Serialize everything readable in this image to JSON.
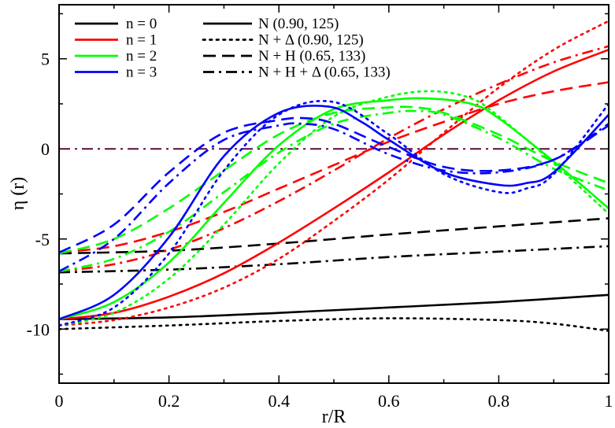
{
  "chart_data": {
    "type": "line",
    "xlabel": "r/R",
    "ylabel": "η (r)",
    "xlim": [
      0,
      1
    ],
    "ylim": [
      -13,
      8
    ],
    "xticks": [
      0,
      0.2,
      0.4,
      0.6,
      0.8,
      1
    ],
    "xtick_labels": [
      "0",
      "0.2",
      "0.4",
      "0.6",
      "0.8",
      "1"
    ],
    "yticks": [
      -10,
      -5,
      0,
      5
    ],
    "ytick_labels": [
      "-10",
      "-5",
      "0",
      "5"
    ],
    "reference_line": {
      "y": 0,
      "color": "#5a0a3c",
      "style": "dashdot"
    },
    "legend_colors": [
      {
        "label": "n = 0",
        "color": "#000000"
      },
      {
        "label": "n = 1",
        "color": "#ff0000"
      },
      {
        "label": "n = 2",
        "color": "#00ff00"
      },
      {
        "label": "n = 3",
        "color": "#0000ff"
      }
    ],
    "legend_styles": [
      {
        "label": "N (0.90, 125)",
        "style": "solid"
      },
      {
        "label": "N + Δ (0.90, 125)",
        "style": "dotted"
      },
      {
        "label": "N + H (0.65, 133)",
        "style": "dashed"
      },
      {
        "label": "N + H + Δ (0.65, 133)",
        "style": "dashdot"
      }
    ],
    "series": [
      {
        "name": "n = 0, N (0.90, 125)",
        "color": "#000000",
        "style": "solid",
        "x": [
          0,
          0.2,
          0.4,
          0.6,
          0.8,
          1
        ],
        "y": [
          -9.45,
          -9.35,
          -9.1,
          -8.8,
          -8.5,
          -8.1
        ]
      },
      {
        "name": "n = 0, N + Δ (0.90, 125)",
        "color": "#000000",
        "style": "dotted",
        "x": [
          0,
          0.2,
          0.4,
          0.6,
          0.8,
          0.9,
          1
        ],
        "y": [
          -10.0,
          -9.8,
          -9.55,
          -9.4,
          -9.5,
          -9.7,
          -10.1
        ]
      },
      {
        "name": "n = 0, N + H (0.65, 133)",
        "color": "#000000",
        "style": "dashed",
        "x": [
          0,
          0.2,
          0.4,
          0.6,
          0.8,
          1
        ],
        "y": [
          -5.8,
          -5.65,
          -5.25,
          -4.75,
          -4.3,
          -3.85
        ]
      },
      {
        "name": "n = 0, N + H + Δ (0.65, 133)",
        "color": "#000000",
        "style": "dashdot",
        "x": [
          0,
          0.2,
          0.4,
          0.6,
          0.8,
          1
        ],
        "y": [
          -6.85,
          -6.7,
          -6.4,
          -6.0,
          -5.7,
          -5.4
        ]
      },
      {
        "name": "n = 1, N (0.90, 125)",
        "color": "#ff0000",
        "style": "solid",
        "x": [
          0,
          0.1,
          0.2,
          0.3,
          0.4,
          0.5,
          0.6,
          0.7,
          0.8,
          0.9,
          1
        ],
        "y": [
          -9.45,
          -9.1,
          -8.2,
          -6.9,
          -5.2,
          -3.3,
          -1.3,
          0.8,
          2.7,
          4.3,
          5.5
        ]
      },
      {
        "name": "n = 1, N + Δ (0.90, 125)",
        "color": "#ff0000",
        "style": "dotted",
        "x": [
          0,
          0.1,
          0.2,
          0.3,
          0.4,
          0.5,
          0.6,
          0.7,
          0.8,
          0.9,
          1
        ],
        "y": [
          -9.8,
          -9.5,
          -8.8,
          -7.7,
          -6.1,
          -4.0,
          -1.7,
          0.9,
          3.4,
          5.5,
          7.1
        ]
      },
      {
        "name": "n = 1, N + H (0.65, 133)",
        "color": "#ff0000",
        "style": "dashed",
        "x": [
          0,
          0.1,
          0.2,
          0.3,
          0.4,
          0.5,
          0.6,
          0.7,
          0.8,
          0.9,
          1
        ],
        "y": [
          -5.75,
          -5.4,
          -4.6,
          -3.5,
          -2.2,
          -0.9,
          0.4,
          1.5,
          2.5,
          3.2,
          3.7
        ]
      },
      {
        "name": "n = 1, N + H + Δ (0.65, 133)",
        "color": "#ff0000",
        "style": "dashdot",
        "x": [
          0,
          0.1,
          0.2,
          0.3,
          0.4,
          0.5,
          0.6,
          0.7,
          0.8,
          0.9,
          1
        ],
        "y": [
          -6.8,
          -6.4,
          -5.6,
          -4.4,
          -2.9,
          -1.2,
          0.6,
          2.2,
          3.6,
          4.8,
          5.7
        ]
      },
      {
        "name": "n = 2, N (0.90, 125)",
        "color": "#00ff00",
        "style": "solid",
        "x": [
          0,
          0.1,
          0.2,
          0.3,
          0.4,
          0.5,
          0.6,
          0.67,
          0.75,
          0.8,
          0.9,
          1
        ],
        "y": [
          -9.45,
          -8.5,
          -6.3,
          -3.0,
          0.2,
          2.2,
          2.7,
          2.8,
          2.5,
          1.7,
          -0.7,
          -3.3
        ]
      },
      {
        "name": "n = 2, N + Δ (0.90, 125)",
        "color": "#00ff00",
        "style": "dotted",
        "x": [
          0,
          0.1,
          0.2,
          0.3,
          0.4,
          0.5,
          0.6,
          0.68,
          0.75,
          0.8,
          0.9,
          1
        ],
        "y": [
          -9.8,
          -9.1,
          -7.2,
          -4.2,
          -0.8,
          1.8,
          2.9,
          3.2,
          2.8,
          1.8,
          -0.8,
          -3.6
        ]
      },
      {
        "name": "n = 2, N + H (0.65, 133)",
        "color": "#00ff00",
        "style": "dashed",
        "x": [
          0,
          0.1,
          0.2,
          0.3,
          0.4,
          0.5,
          0.6,
          0.65,
          0.7,
          0.8,
          0.9,
          1
        ],
        "y": [
          -5.8,
          -5.0,
          -3.3,
          -1.2,
          0.8,
          2.0,
          2.3,
          2.3,
          2.0,
          0.8,
          -0.7,
          -1.9
        ]
      },
      {
        "name": "n = 2, N + H + Δ (0.65, 133)",
        "color": "#00ff00",
        "style": "dashdot",
        "x": [
          0,
          0.1,
          0.2,
          0.3,
          0.4,
          0.5,
          0.6,
          0.65,
          0.7,
          0.8,
          0.9,
          1
        ],
        "y": [
          -6.8,
          -6.1,
          -4.6,
          -2.4,
          -0.2,
          1.4,
          2.0,
          2.1,
          1.9,
          0.6,
          -1.1,
          -2.3
        ]
      },
      {
        "name": "n = 3, N (0.90, 125)",
        "color": "#0000ff",
        "style": "solid",
        "x": [
          0,
          0.1,
          0.2,
          0.3,
          0.4,
          0.49,
          0.55,
          0.6,
          0.7,
          0.8,
          0.85,
          0.9,
          1
        ],
        "y": [
          -9.45,
          -8.1,
          -4.9,
          -0.4,
          2.0,
          2.35,
          1.5,
          0.5,
          -1.3,
          -2.0,
          -1.9,
          -1.3,
          1.9
        ]
      },
      {
        "name": "n = 3, N + Δ (0.90, 125)",
        "color": "#0000ff",
        "style": "dotted",
        "x": [
          0,
          0.1,
          0.2,
          0.3,
          0.4,
          0.5,
          0.6,
          0.7,
          0.8,
          0.85,
          0.9,
          1
        ],
        "y": [
          -9.8,
          -8.8,
          -5.8,
          -1.2,
          1.9,
          2.6,
          0.8,
          -1.4,
          -2.4,
          -2.2,
          -1.4,
          2.5
        ]
      },
      {
        "name": "n = 3, N + H (0.65, 133)",
        "color": "#0000ff",
        "style": "dashed",
        "x": [
          0,
          0.1,
          0.2,
          0.3,
          0.4,
          0.45,
          0.5,
          0.6,
          0.7,
          0.8,
          0.9,
          1
        ],
        "y": [
          -5.75,
          -4.2,
          -1.3,
          0.9,
          1.6,
          1.7,
          1.4,
          0.1,
          -1.0,
          -1.2,
          -0.6,
          1.3
        ]
      },
      {
        "name": "n = 3, N + H + Δ (0.65, 133)",
        "color": "#0000ff",
        "style": "dashdot",
        "x": [
          0,
          0.1,
          0.2,
          0.3,
          0.4,
          0.44,
          0.5,
          0.6,
          0.7,
          0.8,
          0.9,
          1
        ],
        "y": [
          -6.8,
          -5.0,
          -1.9,
          0.5,
          1.3,
          1.4,
          1.1,
          -0.3,
          -1.2,
          -1.3,
          -0.6,
          1.4
        ]
      }
    ]
  }
}
